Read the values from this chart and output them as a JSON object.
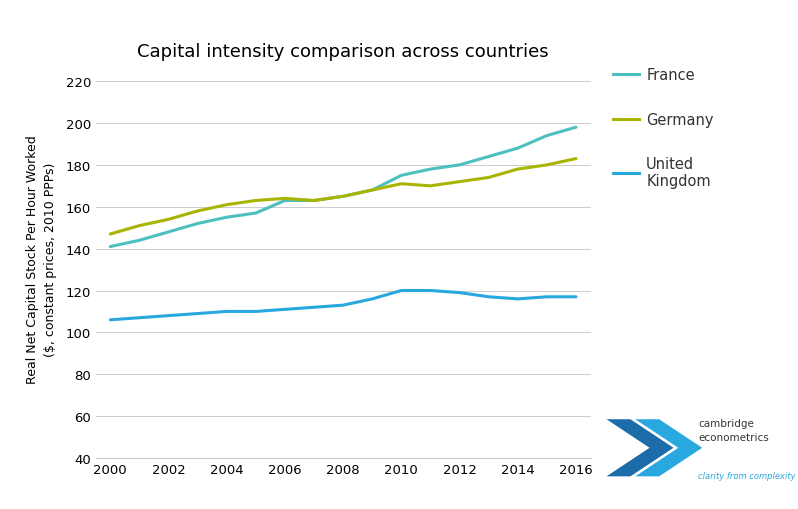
{
  "title": "Capital intensity comparison across countries",
  "ylabel": "Real Net Capital Stock Per Hour Worked\n($, constant prices, 2010 PPPs)",
  "years": [
    2000,
    2001,
    2002,
    2003,
    2004,
    2005,
    2006,
    2007,
    2008,
    2009,
    2010,
    2011,
    2012,
    2013,
    2014,
    2015,
    2016
  ],
  "france": [
    141,
    144,
    148,
    152,
    155,
    157,
    163,
    163,
    165,
    168,
    175,
    178,
    180,
    184,
    188,
    194,
    198
  ],
  "germany": [
    147,
    151,
    154,
    158,
    161,
    163,
    164,
    163,
    165,
    168,
    171,
    170,
    172,
    174,
    178,
    180,
    183
  ],
  "uk": [
    106,
    107,
    108,
    109,
    110,
    110,
    111,
    112,
    113,
    116,
    120,
    120,
    119,
    117,
    116,
    117,
    117
  ],
  "france_color": "#4DBFBF",
  "germany_color": "#A8B400",
  "uk_color": "#29A8E0",
  "ylim": [
    40,
    230
  ],
  "yticks": [
    40,
    60,
    80,
    100,
    120,
    140,
    160,
    180,
    200,
    220
  ],
  "xticks": [
    2000,
    2002,
    2004,
    2006,
    2008,
    2010,
    2012,
    2014,
    2016
  ],
  "linewidth": 2.2,
  "background_color": "#ffffff",
  "grid_color": "#cccccc",
  "title_fontsize": 13,
  "label_fontsize": 9,
  "tick_fontsize": 9.5,
  "legend_labels": [
    "France",
    "Germany",
    "United\nKingdom"
  ]
}
